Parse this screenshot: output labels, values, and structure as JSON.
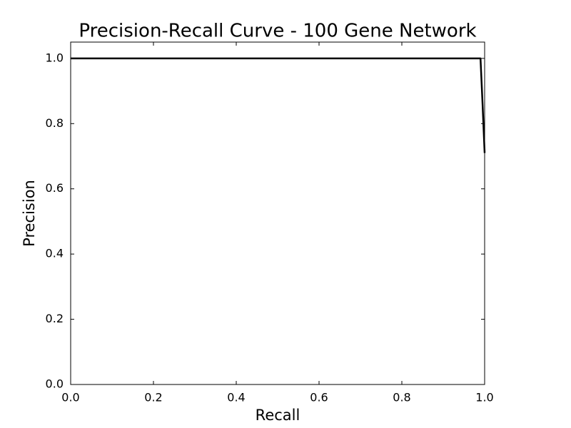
{
  "chart_data": {
    "type": "line",
    "title": "Precision-Recall Curve - 100 Gene Network",
    "x_label": "Recall",
    "y_label": "Precision",
    "x": [
      0,
      0.99,
      0.995,
      1.0
    ],
    "series": [
      {
        "color": "#000000",
        "values": [
          1.0,
          1.0,
          0.86,
          0.71
        ]
      }
    ],
    "xlim": [
      0,
      1.0
    ],
    "ylim": [
      0,
      1.05
    ],
    "xticks": [
      {
        "value": 0,
        "label": "0.0"
      },
      0.2,
      0.4,
      0.6,
      0.8,
      {
        "value": 1,
        "label": "1.0"
      }
    ],
    "yticks": [
      {
        "value": 0,
        "label": "0.0"
      },
      0.2,
      0.4,
      0.6,
      0.8,
      {
        "value": 1,
        "label": "1.0"
      }
    ],
    "grid": false
  }
}
